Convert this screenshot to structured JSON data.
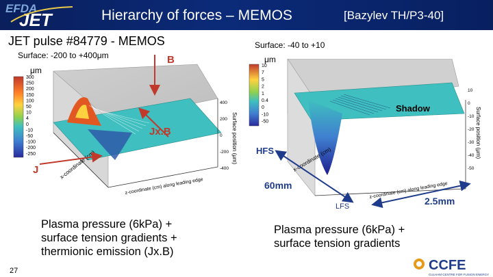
{
  "header": {
    "logo_text": "EFDA JET",
    "title": "Hierarchy of forces – MEMOS",
    "reference": "[Bazylev TH/P3-40]"
  },
  "left_panel": {
    "pulse_label": "JET pulse #84779 - MEMOS",
    "surface_label": "Surface:  -200 to +400",
    "surface_unit": "μm",
    "unit_label": "μm",
    "colorbar_ticks": [
      "300",
      "250",
      "200",
      "150",
      "100",
      "50",
      "10",
      "4",
      "0",
      "-10",
      "-50",
      "-100",
      "-200",
      "-250"
    ],
    "label_B": "B",
    "label_JxB": "Jx.B",
    "label_J": "J",
    "z_axis_ticks": [
      "400",
      "200",
      "0",
      "-200",
      "-400"
    ],
    "z_axis_label": "Surface position (μm)",
    "x_axis_label": "x-coordinate (cm)",
    "y_axis_label": "z-coordinate (cm) along leading edge",
    "caption_lines": [
      "Plasma pressure (6kPa) +",
      "surface tension gradients +",
      "thermionic emission (Jx.B)"
    ]
  },
  "right_panel": {
    "surface_label": "Surface:  -40 to +10",
    "unit_label": "μm",
    "colorbar_ticks": [
      "10",
      "7",
      "5",
      "2",
      "1",
      "0.4",
      "0",
      "-10",
      "-50"
    ],
    "label_shadow": "Shadow",
    "label_HFS": "HFS",
    "label_LFS": "LFS",
    "label_60mm": "60mm",
    "label_25mm": "2.5mm",
    "z_axis_ticks": [
      "10",
      "0",
      "-10",
      "-20",
      "-30",
      "-40",
      "-50"
    ],
    "z_axis_label": "Surface position (μm)",
    "x_axis_label": "x-coordinate (cm)",
    "y_axis_label": "z-coordinate (cm) along leading edge",
    "caption_lines": [
      "Plasma pressure (6kPa) +",
      "surface tension gradients"
    ]
  },
  "footer": {
    "slide_number": "27",
    "ccfe_logo_text": "CCFE",
    "ccfe_tagline": "CULHAM CENTRE FOR FUSION ENERGY"
  },
  "colors": {
    "header_bg": "#0b2a78",
    "surface_flat": "#3fbfbf",
    "arrow_red": "#c0392b",
    "arrow_blue": "#1f3c8c"
  }
}
